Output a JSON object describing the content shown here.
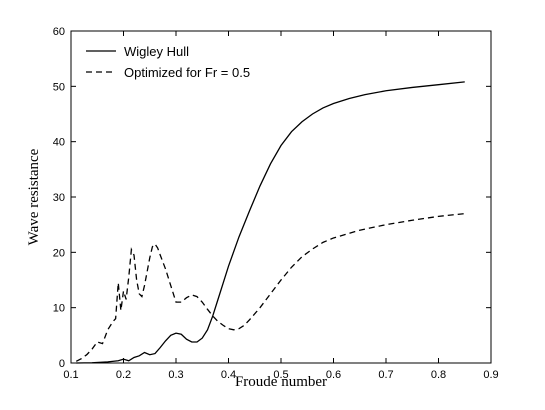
{
  "chart_data": {
    "type": "line",
    "title": "",
    "xlabel": "Froude number",
    "ylabel": "Wave resistance",
    "xlim": [
      0.1,
      0.9
    ],
    "ylim": [
      0,
      60
    ],
    "xticks": [
      0.1,
      0.2,
      0.3,
      0.4,
      0.5,
      0.6,
      0.7,
      0.8,
      0.9
    ],
    "xtick_labels": [
      "0.1",
      "0.2",
      "0.3",
      "0.4",
      "0.5",
      "0.6",
      "0.7",
      "0.8",
      "0.9"
    ],
    "yticks": [
      0,
      10,
      20,
      30,
      40,
      50,
      60
    ],
    "ytick_labels": [
      "0",
      "10",
      "20",
      "30",
      "40",
      "50",
      "60"
    ],
    "grid": false,
    "legend_position": "top-left",
    "series": [
      {
        "name": "Wigley Hull",
        "style": "solid",
        "color": "#000000",
        "x": [
          0.11,
          0.14,
          0.17,
          0.19,
          0.2,
          0.21,
          0.22,
          0.23,
          0.24,
          0.25,
          0.26,
          0.27,
          0.28,
          0.29,
          0.3,
          0.31,
          0.32,
          0.33,
          0.34,
          0.35,
          0.36,
          0.37,
          0.38,
          0.39,
          0.4,
          0.42,
          0.44,
          0.46,
          0.48,
          0.5,
          0.52,
          0.54,
          0.56,
          0.58,
          0.6,
          0.63,
          0.66,
          0.7,
          0.75,
          0.8,
          0.85
        ],
        "y": [
          0.0,
          0.05,
          0.2,
          0.4,
          0.7,
          0.4,
          1.0,
          1.3,
          1.9,
          1.5,
          1.7,
          2.8,
          4.0,
          5.0,
          5.4,
          5.2,
          4.3,
          3.8,
          3.8,
          4.5,
          6.0,
          8.5,
          11.5,
          14.5,
          17.5,
          22.8,
          27.5,
          32.0,
          36.0,
          39.3,
          41.8,
          43.6,
          45.0,
          46.1,
          46.9,
          47.8,
          48.5,
          49.2,
          49.8,
          50.3,
          50.8
        ]
      },
      {
        "name": "Optimized for Fr = 0.5",
        "style": "dashed",
        "color": "#000000",
        "x": [
          0.11,
          0.12,
          0.13,
          0.14,
          0.15,
          0.16,
          0.17,
          0.18,
          0.185,
          0.19,
          0.195,
          0.2,
          0.205,
          0.21,
          0.215,
          0.22,
          0.225,
          0.23,
          0.235,
          0.24,
          0.245,
          0.25,
          0.255,
          0.26,
          0.265,
          0.27,
          0.28,
          0.29,
          0.3,
          0.31,
          0.32,
          0.33,
          0.34,
          0.35,
          0.36,
          0.37,
          0.38,
          0.39,
          0.4,
          0.41,
          0.42,
          0.43,
          0.44,
          0.46,
          0.48,
          0.5,
          0.52,
          0.54,
          0.56,
          0.58,
          0.6,
          0.65,
          0.7,
          0.75,
          0.8,
          0.85
        ],
        "y": [
          0.3,
          0.8,
          1.5,
          2.5,
          3.8,
          3.5,
          6.0,
          7.5,
          8.0,
          14.5,
          9.5,
          13.0,
          11.5,
          15.5,
          20.5,
          19.5,
          15.0,
          12.5,
          12.0,
          14.0,
          16.5,
          19.0,
          21.0,
          21.5,
          20.8,
          19.5,
          17.0,
          14.0,
          11.0,
          11.0,
          11.8,
          12.3,
          12.0,
          11.0,
          9.7,
          8.5,
          7.5,
          6.8,
          6.2,
          6.0,
          6.2,
          6.8,
          7.8,
          10.0,
          12.5,
          15.0,
          17.3,
          19.2,
          20.6,
          21.8,
          22.6,
          24.0,
          25.0,
          25.8,
          26.5,
          27.0
        ]
      }
    ]
  }
}
